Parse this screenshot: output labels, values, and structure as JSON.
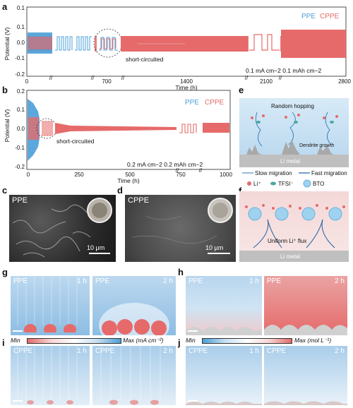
{
  "panels": {
    "a": "a",
    "b": "b",
    "c": "c",
    "d": "d",
    "e": "e",
    "f": "f",
    "g": "g",
    "h": "h",
    "i": "i",
    "j": "j"
  },
  "colors": {
    "ppe": "#4a9fd8",
    "cppe": "#e66a6a",
    "sem_dark": "#2b2b2b",
    "metal": "#bfbfbf",
    "bg_blue": "#cfe4f3"
  },
  "chart_a": {
    "ylabel": "Potential (V)",
    "xlabel": "Time (h)",
    "yticks": [
      "0.1",
      "0.0",
      "-0.1",
      "-0.2"
    ],
    "xticks": [
      "0",
      "700",
      "1400",
      "2100",
      "2800"
    ],
    "ytop_tick": "0.1",
    "legend": [
      "PPE",
      "CPPE"
    ],
    "note_short": "short-circuited",
    "note_cond": "0.1 mA cm−2  0.1 mAh cm−2"
  },
  "chart_b": {
    "ylabel": "Potential (V)",
    "xlabel": "Time (h)",
    "yticks": [
      "0.2",
      "0.1",
      "0.0",
      "-0.1",
      "-0.2"
    ],
    "xticks": [
      "0",
      "250",
      "500",
      "750",
      "1000"
    ],
    "legend": [
      "PPE",
      "CPPE"
    ],
    "note_short": "short-circuited",
    "note_cond": "0.2 mA cm−2   0.2 mAh cm−2"
  },
  "sem_c": {
    "label": "PPE",
    "scale": "10 μm"
  },
  "sem_d": {
    "label": "CPPE",
    "scale": "10 μm"
  },
  "schem_e": {
    "top": "Random hopping",
    "dendrite": "Dendrite growth",
    "metal": "Li metal"
  },
  "legend_ef": {
    "slow": "Slow migration",
    "fast": "Fast migration",
    "li": "Li⁺",
    "tfsi": "TFSI⁻",
    "bto": "BTO"
  },
  "schem_f": {
    "flux": "Uniform Li⁺ flux",
    "metal": "Li metal"
  },
  "sim_g": {
    "left_label": "PPE",
    "left_time": "1 h",
    "right_label": "PPE",
    "right_time": "2 h"
  },
  "sim_h": {
    "left_label": "PPE",
    "left_time": "1 h",
    "right_label": "PPE",
    "right_time": "2 h"
  },
  "sim_i": {
    "left_label": "CPPE",
    "left_time": "1 h",
    "right_label": "CPPE",
    "right_time": "2 h"
  },
  "sim_j": {
    "left_label": "CPPE",
    "left_time": "1 h",
    "right_label": "CPPE",
    "right_time": "2 h"
  },
  "colorbar_left": {
    "min": "Min",
    "max": "Max (mA cm⁻²)"
  },
  "colorbar_right": {
    "min": "Min",
    "max": "Max (mol L⁻¹)"
  }
}
